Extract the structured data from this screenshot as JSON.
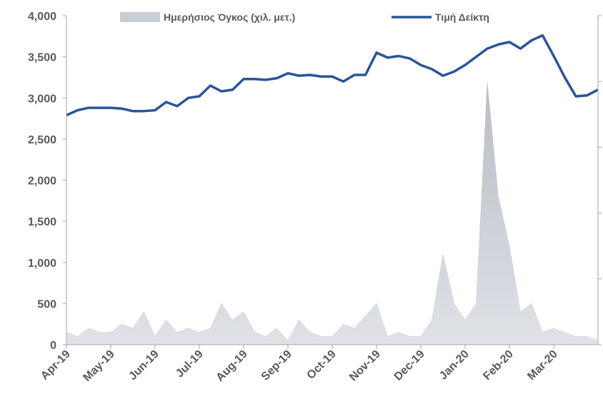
{
  "chart_data": {
    "type": "area-line",
    "xlim": [
      0,
      12
    ],
    "xticks": [
      {
        "value": 0,
        "label": "Apr-19"
      },
      {
        "value": 1,
        "label": "May-19"
      },
      {
        "value": 2,
        "label": "Jun-19"
      },
      {
        "value": 3,
        "label": "Jul-19"
      },
      {
        "value": 4,
        "label": "Aug-19"
      },
      {
        "value": 5,
        "label": "Sep-19"
      },
      {
        "value": 6,
        "label": "Oct-19"
      },
      {
        "value": 7,
        "label": "Nov-19"
      },
      {
        "value": 8,
        "label": "Dec-19"
      },
      {
        "value": 9,
        "label": "Jan-20"
      },
      {
        "value": 10,
        "label": "Feb-20"
      },
      {
        "value": 11,
        "label": "Mar-20"
      }
    ],
    "ylim": [
      0,
      4000
    ],
    "yticks": [
      0,
      {
        "value": 500,
        "label": "500"
      },
      {
        "value": 1000,
        "label": "1,000"
      },
      {
        "value": 1500,
        "label": "1,500"
      },
      {
        "value": 2000,
        "label": "2,000"
      },
      {
        "value": 2500,
        "label": "2,500"
      },
      {
        "value": 3000,
        "label": "3,000"
      },
      {
        "value": 3500,
        "label": "3,500"
      },
      {
        "value": 4000,
        "label": "4,000"
      }
    ],
    "x": [
      0,
      0.25,
      0.5,
      0.75,
      1,
      1.25,
      1.5,
      1.75,
      2,
      2.25,
      2.5,
      2.75,
      3,
      3.25,
      3.5,
      3.75,
      4,
      4.25,
      4.5,
      4.75,
      5,
      5.25,
      5.5,
      5.75,
      6,
      6.25,
      6.5,
      6.75,
      7,
      7.25,
      7.5,
      7.75,
      8,
      8.25,
      8.5,
      8.75,
      9,
      9.25,
      9.5,
      9.75,
      10,
      10.25,
      10.5,
      10.75,
      11,
      11.25,
      11.5,
      11.75,
      12
    ],
    "series": [
      {
        "name": "Ημερήσιος Όγκος (χιλ. μετ.)",
        "kind": "area",
        "color": "#c9cdd4",
        "values": [
          150,
          100,
          200,
          150,
          150,
          250,
          200,
          400,
          100,
          300,
          150,
          200,
          150,
          200,
          500,
          300,
          400,
          150,
          100,
          200,
          50,
          300,
          150,
          100,
          100,
          250,
          200,
          350,
          500,
          100,
          150,
          100,
          100,
          300,
          1100,
          500,
          300,
          500,
          3200,
          1800,
          1200,
          400,
          500,
          150,
          200,
          150,
          100,
          100,
          50
        ]
      },
      {
        "name": "Τιμή Δείκτη",
        "kind": "line",
        "color": "#2a5597",
        "values": [
          2790,
          2850,
          2880,
          2880,
          2880,
          2870,
          2840,
          2840,
          2850,
          2950,
          2900,
          3000,
          3020,
          3150,
          3080,
          3100,
          3230,
          3230,
          3220,
          3240,
          3300,
          3270,
          3280,
          3260,
          3260,
          3200,
          3280,
          3280,
          3550,
          3490,
          3510,
          3480,
          3400,
          3350,
          3270,
          3320,
          3400,
          3500,
          3600,
          3650,
          3680,
          3600,
          3700,
          3760,
          3510,
          3250,
          3020,
          3030,
          3100
        ]
      }
    ]
  }
}
